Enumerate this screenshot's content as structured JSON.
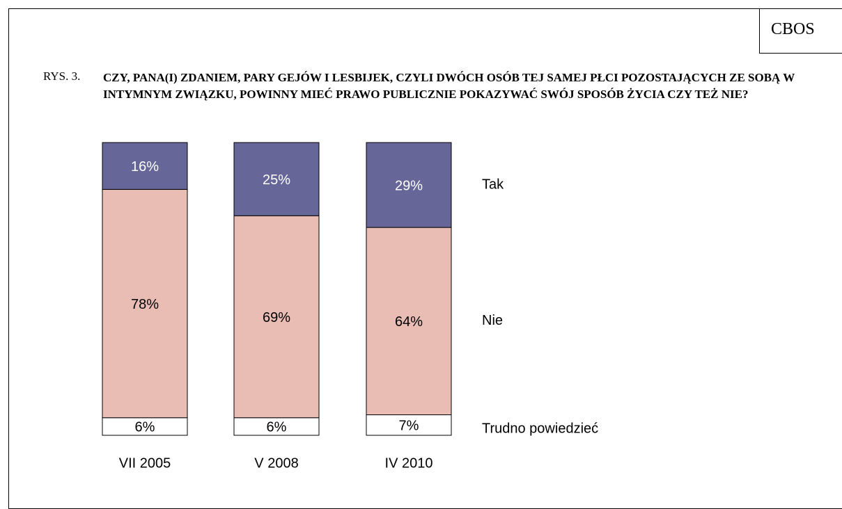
{
  "header": {
    "label": "CBOS",
    "figure": "RYS. 3."
  },
  "chart_data": {
    "type": "stacked-bar",
    "title": "CZY, PANA(I) ZDANIEM, PARY GEJÓW I LESBIJEK, CZYLI DWÓCH OSÓB TEJ SAMEJ PŁCI POZOSTAJĄCYCH ZE SOBĄ W INTYMNYM ZWIĄZKU, POWINNY MIEĆ PRAWO PUBLICZNIE POKAZYWAĆ SWÓJ SPOSÓB ŻYCIA CZY TEŻ NIE?",
    "categories": [
      "VII 2005",
      "V 2008",
      "IV 2010"
    ],
    "series": [
      {
        "name": "Trudno powiedzieć",
        "color": "#ffffff",
        "values": [
          6,
          6,
          7
        ],
        "value_labels": [
          "6%",
          "6%",
          "7%"
        ]
      },
      {
        "name": "Nie",
        "color": "#e9bdb4",
        "values": [
          78,
          69,
          64
        ],
        "value_labels": [
          "78%",
          "69%",
          "64%"
        ]
      },
      {
        "name": "Tak",
        "color": "#666699",
        "values": [
          16,
          25,
          29
        ],
        "value_labels": [
          "16%",
          "25%",
          "29%"
        ]
      }
    ]
  }
}
